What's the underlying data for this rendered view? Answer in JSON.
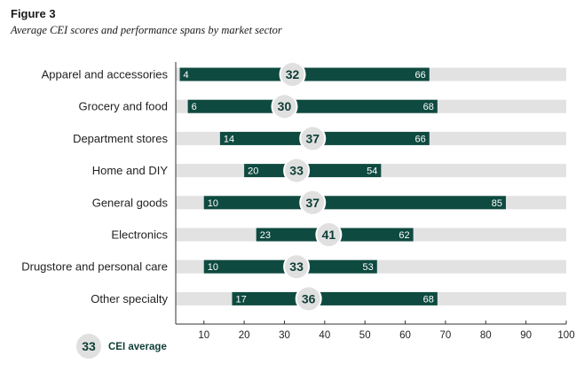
{
  "figure": {
    "label": "Figure 3",
    "subtitle": "Average CEI scores and performance spans by market sector"
  },
  "colors": {
    "track": "#e2e2e2",
    "bar": "#0e4a40",
    "circle_fill": "#e0e0e0",
    "circle_stroke": "#ffffff",
    "avg_text": "#0e3d35",
    "axis": "#333333"
  },
  "chart_data": {
    "type": "range-bar",
    "title": "Average CEI scores and performance spans by market sector",
    "xlim": [
      3,
      100
    ],
    "xticks": [
      10,
      20,
      30,
      40,
      50,
      60,
      70,
      80,
      90,
      100
    ],
    "categories": [
      "Apparel and accessories",
      "Grocery and food",
      "Department stores",
      "Home and DIY",
      "General goods",
      "Electronics",
      "Drugstore and personal care",
      "Other specialty"
    ],
    "series": [
      {
        "name": "Low",
        "values": [
          4,
          6,
          14,
          20,
          10,
          23,
          10,
          17
        ]
      },
      {
        "name": "High",
        "values": [
          66,
          68,
          66,
          54,
          85,
          62,
          53,
          68
        ]
      },
      {
        "name": "CEI average",
        "values": [
          32,
          30,
          37,
          33,
          37,
          41,
          33,
          36
        ]
      }
    ],
    "legend": {
      "sample": "33",
      "label": "CEI average",
      "position": "bottom-left"
    }
  }
}
